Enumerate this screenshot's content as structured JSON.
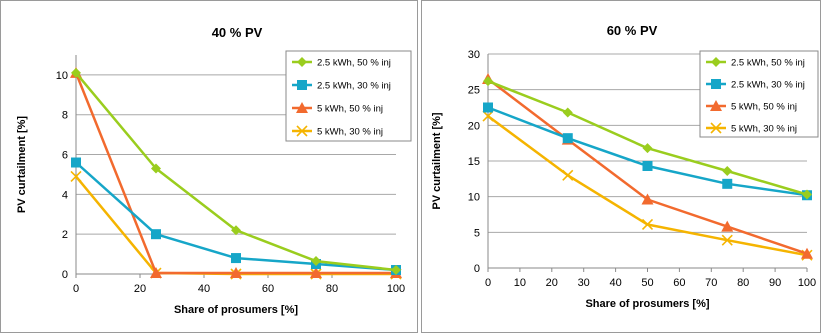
{
  "chart_data": [
    {
      "type": "line",
      "title": "40 % PV",
      "xlabel": "Share of prosumers  [%]",
      "ylabel": "PV curtailment  [%]",
      "xlim": [
        0,
        100
      ],
      "ylim": [
        0,
        11
      ],
      "xticks": [
        0,
        20,
        40,
        60,
        80,
        100
      ],
      "yticks": [
        0,
        2,
        4,
        6,
        8,
        10
      ],
      "grid": "horizontal",
      "legend_position": "top-right",
      "series": [
        {
          "name": "2.5 kWh, 50 % inj",
          "color": "#9acd1e",
          "marker": "diamond",
          "x": [
            0,
            25,
            50,
            75,
            100
          ],
          "values": [
            10.1,
            5.3,
            2.2,
            0.65,
            0.2
          ]
        },
        {
          "name": "2.5 kWh, 30 % inj",
          "color": "#16a6c8",
          "marker": "square",
          "x": [
            0,
            25,
            50,
            75,
            100
          ],
          "values": [
            5.6,
            2.0,
            0.8,
            0.5,
            0.2
          ]
        },
        {
          "name": "5 kWh, 50 % inj",
          "color": "#f26a2e",
          "marker": "triangle",
          "x": [
            0,
            25,
            50,
            75,
            100
          ],
          "values": [
            10.1,
            0.05,
            0.05,
            0.05,
            0.05
          ]
        },
        {
          "name": "5 kWh, 30 % inj",
          "color": "#f5b400",
          "marker": "x",
          "x": [
            0,
            25,
            50,
            75,
            100
          ],
          "values": [
            4.9,
            0.05,
            0.0,
            0.0,
            0.0
          ]
        }
      ]
    },
    {
      "type": "line",
      "title": "60 % PV",
      "xlabel": "Share of prosumers  [%]",
      "ylabel": "PV curtailment  [%]",
      "xlim": [
        0,
        100
      ],
      "ylim": [
        0,
        30
      ],
      "xticks": [
        0,
        10,
        20,
        30,
        40,
        50,
        60,
        70,
        80,
        90,
        100
      ],
      "yticks": [
        0,
        5,
        10,
        15,
        20,
        25,
        30
      ],
      "grid": "horizontal",
      "legend_position": "top-right",
      "series": [
        {
          "name": "2.5 kWh, 50 % inj",
          "color": "#9acd1e",
          "marker": "diamond",
          "x": [
            0,
            25,
            50,
            75,
            100
          ],
          "values": [
            26.2,
            21.8,
            16.8,
            13.6,
            10.3
          ]
        },
        {
          "name": "2.5 kWh, 30 % inj",
          "color": "#16a6c8",
          "marker": "square",
          "x": [
            0,
            25,
            50,
            75,
            100
          ],
          "values": [
            22.5,
            18.2,
            14.3,
            11.8,
            10.2
          ]
        },
        {
          "name": "5 kWh, 50 % inj",
          "color": "#f26a2e",
          "marker": "triangle",
          "x": [
            0,
            25,
            50,
            75,
            100
          ],
          "values": [
            26.5,
            18.0,
            9.6,
            5.8,
            2.0
          ]
        },
        {
          "name": "5 kWh, 30 % inj",
          "color": "#f5b400",
          "marker": "x",
          "x": [
            0,
            25,
            50,
            75,
            100
          ],
          "values": [
            21.3,
            13.0,
            6.1,
            3.9,
            1.8
          ]
        }
      ]
    }
  ]
}
